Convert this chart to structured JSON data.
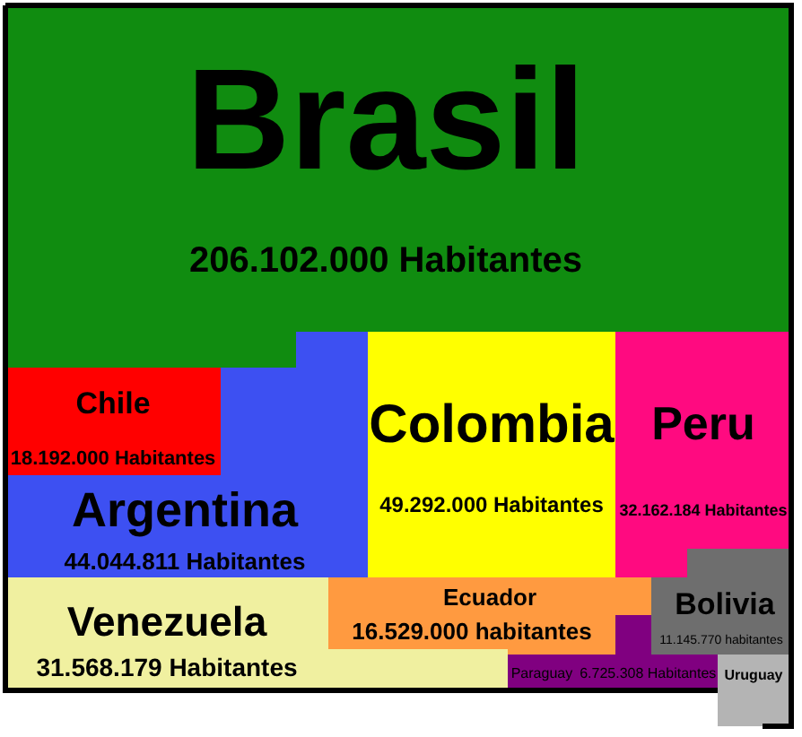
{
  "chart_data": {
    "type": "other",
    "categories": [
      "Brasil",
      "Chile",
      "Argentina",
      "Colombia",
      "Peru",
      "Venezuela",
      "Ecuador",
      "Bolivia",
      "Paraguay",
      "Uruguay"
    ],
    "values": [
      206102000,
      18192000,
      44044811,
      49292000,
      32162184,
      31568179,
      16529000,
      11145770,
      6725308,
      null
    ],
    "value_labels": [
      "206.102.000 Habitantes",
      "18.192.000 Habitantes",
      "44.044.811 Habitantes",
      "49.292.000 Habitantes",
      "32.162.184 Habitantes",
      "31.568.179 Habitantes",
      "16.529.000 habitantes",
      "11.145.770 habitantes",
      "6.725.308 Habitantes",
      null
    ],
    "colors": [
      "#108c10",
      "#ff0000",
      "#3d50f2",
      "#ffff00",
      "#ff0a80",
      "#f0f0a0",
      "#ff9a40",
      "#6e6e6e",
      "#800080",
      "#b4b4b4"
    ]
  }
}
